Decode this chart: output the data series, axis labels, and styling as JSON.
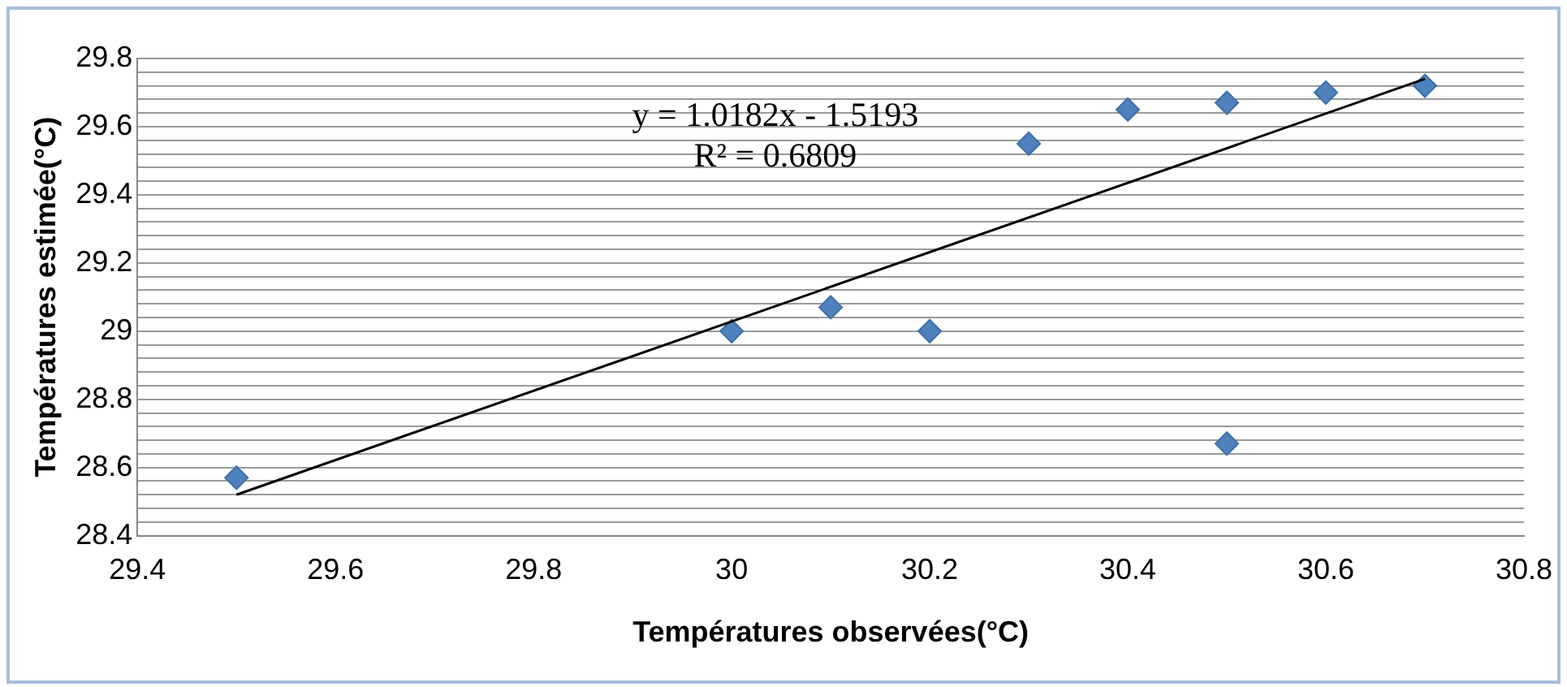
{
  "chart_data": {
    "type": "scatter",
    "xlabel": "Températures observées(°C)",
    "ylabel": "Températures estimée(°C)",
    "x": [
      29.5,
      30.0,
      30.1,
      30.2,
      30.3,
      30.4,
      30.5,
      30.5,
      30.6,
      30.7
    ],
    "series": [
      {
        "color": "#4f81bd",
        "values": [
          28.57,
          29.0,
          29.07,
          29.0,
          29.55,
          29.65,
          29.67,
          28.67,
          29.7,
          29.72
        ],
        "marker": "diamond"
      },
      {
        "type": "line",
        "color": "#000000",
        "x": [
          29.5,
          30.7
        ],
        "values": [
          28.52,
          29.74
        ],
        "marker": "none",
        "line_style": "solid"
      }
    ],
    "annotations": [
      "y = 1.0182x - 1.5193",
      "R² = 0.6809"
    ],
    "xlim": [
      29.4,
      30.8
    ],
    "xticks": [
      29.4,
      29.6,
      29.8,
      30,
      30.2,
      30.4,
      30.6,
      30.8
    ],
    "ylim": [
      28.4,
      29.8
    ],
    "yticks": [
      28.4,
      {
        "value": 28.44,
        "label": null
      },
      {
        "value": 28.48,
        "label": null
      },
      {
        "value": 28.52,
        "label": null
      },
      {
        "value": 28.56,
        "label": null
      },
      28.6,
      {
        "value": 28.64,
        "label": null
      },
      {
        "value": 28.68,
        "label": null
      },
      {
        "value": 28.72,
        "label": null
      },
      {
        "value": 28.76,
        "label": null
      },
      28.8,
      {
        "value": 28.84,
        "label": null
      },
      {
        "value": 28.88,
        "label": null
      },
      {
        "value": 28.92,
        "label": null
      },
      {
        "value": 28.96,
        "label": null
      },
      29,
      {
        "value": 29.04,
        "label": null
      },
      {
        "value": 29.08,
        "label": null
      },
      {
        "value": 29.12,
        "label": null
      },
      {
        "value": 29.16,
        "label": null
      },
      29.2,
      {
        "value": 29.24,
        "label": null
      },
      {
        "value": 29.28,
        "label": null
      },
      {
        "value": 29.32,
        "label": null
      },
      {
        "value": 29.36,
        "label": null
      },
      29.4,
      {
        "value": 29.44,
        "label": null
      },
      {
        "value": 29.48,
        "label": null
      },
      {
        "value": 29.52,
        "label": null
      },
      {
        "value": 29.56,
        "label": null
      },
      29.6,
      {
        "value": 29.64,
        "label": null
      },
      {
        "value": 29.68,
        "label": null
      },
      {
        "value": 29.72,
        "label": null
      },
      {
        "value": 29.76,
        "label": null
      },
      29.8
    ],
    "grid": "y",
    "legend": false
  }
}
